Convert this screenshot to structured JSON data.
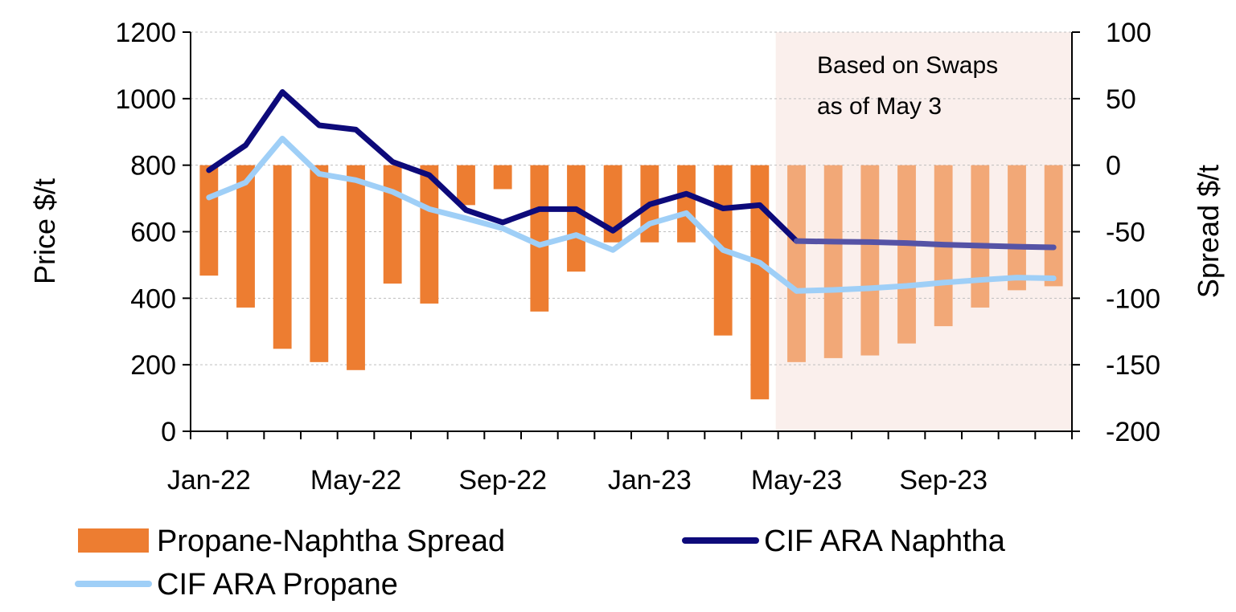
{
  "chart_data": {
    "type": "bar+line",
    "title": "",
    "ylabel_left": "Price $/t",
    "ylabel_right": "Spread $/t",
    "ylim_left": [
      0,
      1200
    ],
    "ylim_right": [
      -200,
      100
    ],
    "yticks_left": [
      0,
      200,
      400,
      600,
      800,
      1000,
      1200
    ],
    "yticks_right": [
      -200,
      -150,
      -100,
      -50,
      0,
      50,
      100
    ],
    "x": [
      "Jan-22",
      "Feb-22",
      "Mar-22",
      "Apr-22",
      "May-22",
      "Jun-22",
      "Jul-22",
      "Aug-22",
      "Sep-22",
      "Oct-22",
      "Nov-22",
      "Dec-22",
      "Jan-23",
      "Feb-23",
      "Mar-23",
      "Apr-23",
      "May-23",
      "Jun-23",
      "Jul-23",
      "Aug-23",
      "Sep-23",
      "Oct-23",
      "Nov-23",
      "Dec-23"
    ],
    "x_tick_labels": [
      "Jan-22",
      "May-22",
      "Sep-22",
      "Jan-23",
      "May-23",
      "Sep-23"
    ],
    "forecast_start": "May-23",
    "annotation": [
      "Based on Swaps",
      "as of May 3"
    ],
    "grid": "horizontal",
    "legend_position": "bottom",
    "series": [
      {
        "name": "Propane-Naphtha Spread",
        "kind": "bar",
        "axis": "right",
        "color": "#ED7D31",
        "forecast_color": "#F2A877",
        "values": [
          -83,
          -107,
          -138,
          -148,
          -154,
          -89,
          -104,
          -30,
          -18,
          -110,
          -80,
          -58,
          -58,
          -58,
          -128,
          -176,
          -148,
          -145,
          -143,
          -134,
          -121,
          -107,
          -94,
          -91
        ]
      },
      {
        "name": "CIF ARA Naphtha",
        "kind": "line",
        "axis": "left",
        "color": "#0D0A7A",
        "forecast_color": "#5553A6",
        "values": [
          785,
          860,
          1020,
          920,
          907,
          810,
          770,
          665,
          628,
          668,
          668,
          603,
          682,
          714,
          670,
          680,
          572,
          570,
          569,
          566,
          561,
          558,
          555,
          553
        ]
      },
      {
        "name": "CIF ARA Propane",
        "kind": "line",
        "axis": "left",
        "color": "#9FCFF7",
        "forecast_color": "#9FCFF7",
        "values": [
          703,
          748,
          880,
          774,
          755,
          720,
          668,
          640,
          610,
          560,
          590,
          545,
          624,
          656,
          545,
          507,
          422,
          425,
          430,
          437,
          447,
          455,
          462,
          460
        ]
      }
    ]
  }
}
